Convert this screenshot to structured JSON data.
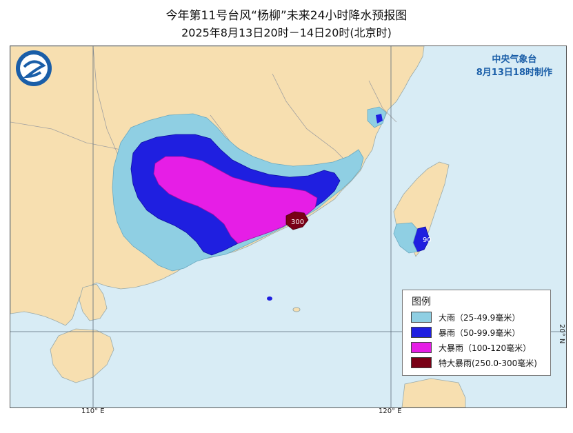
{
  "title_line1": "今年第11号台风“杨柳”未来24小时降水预报图",
  "title_line2": "2025年8月13日20时－14日20时(北京时)",
  "agency": "中央气象台",
  "issued": "8月13日18时制作",
  "legend": {
    "title": "图例",
    "items": [
      {
        "label": "大雨（25-49.9毫米）",
        "color": "#8fcfe3"
      },
      {
        "label": "暴雨（50-99.9毫米）",
        "color": "#1f1fe0"
      },
      {
        "label": "大暴雨（100-120毫米）",
        "color": "#e61ee6"
      },
      {
        "label": "特大暴雨(250.0-300毫米)",
        "color": "#7a0016"
      }
    ]
  },
  "map_labels": {
    "max_guangdong": "300",
    "max_taiwan": "90"
  },
  "axis": {
    "lon_110": "110° E",
    "lon_120": "120° E",
    "lat_20": "20° N"
  },
  "colors": {
    "sea": "#d8ecf5",
    "land": "#f7dfb0",
    "border": "#a0a0a0",
    "grid": "#5a6a78"
  }
}
